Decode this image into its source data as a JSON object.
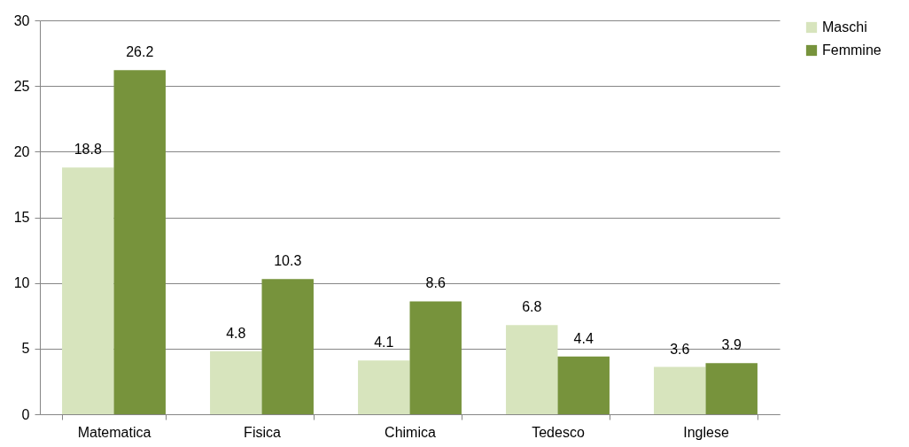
{
  "chart_data": {
    "type": "bar",
    "categories": [
      "Matematica",
      "Fisica",
      "Chimica",
      "Tedesco",
      "Inglese"
    ],
    "series": [
      {
        "name": "Maschi",
        "color": "#d7e4bd",
        "values": [
          18.8,
          4.8,
          4.1,
          6.8,
          3.6
        ]
      },
      {
        "name": "Femmine",
        "color": "#77933c",
        "values": [
          26.2,
          10.3,
          8.6,
          4.4,
          3.9
        ]
      }
    ],
    "ylim": [
      0,
      30
    ],
    "yticks": [
      0,
      5,
      10,
      15,
      20,
      25,
      30
    ],
    "grid": "y",
    "legend": "right",
    "data_labels": true
  }
}
